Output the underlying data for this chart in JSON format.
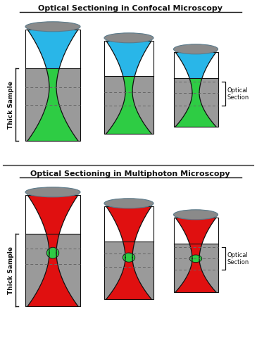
{
  "title_confocal": "Optical Sectioning in Confocal Microscopy",
  "title_multiphoton": "Optical Sectioning in Multiphoton Microscopy",
  "label_thick_sample": "Thick Sample",
  "label_optical_section": "Optical\nSection",
  "bg_color": "#ffffff",
  "gray_color": "#9a9a9a",
  "light_gray": "#bbbbbb",
  "dark_gray": "#666666",
  "blue_color": "#29b6e8",
  "green_color": "#2ecc44",
  "red_color": "#e01010",
  "lens_color": "#8a8a8a",
  "lens_edge": "#5a7a8a",
  "black": "#111111",
  "line_color": "#555555",
  "white": "#ffffff"
}
